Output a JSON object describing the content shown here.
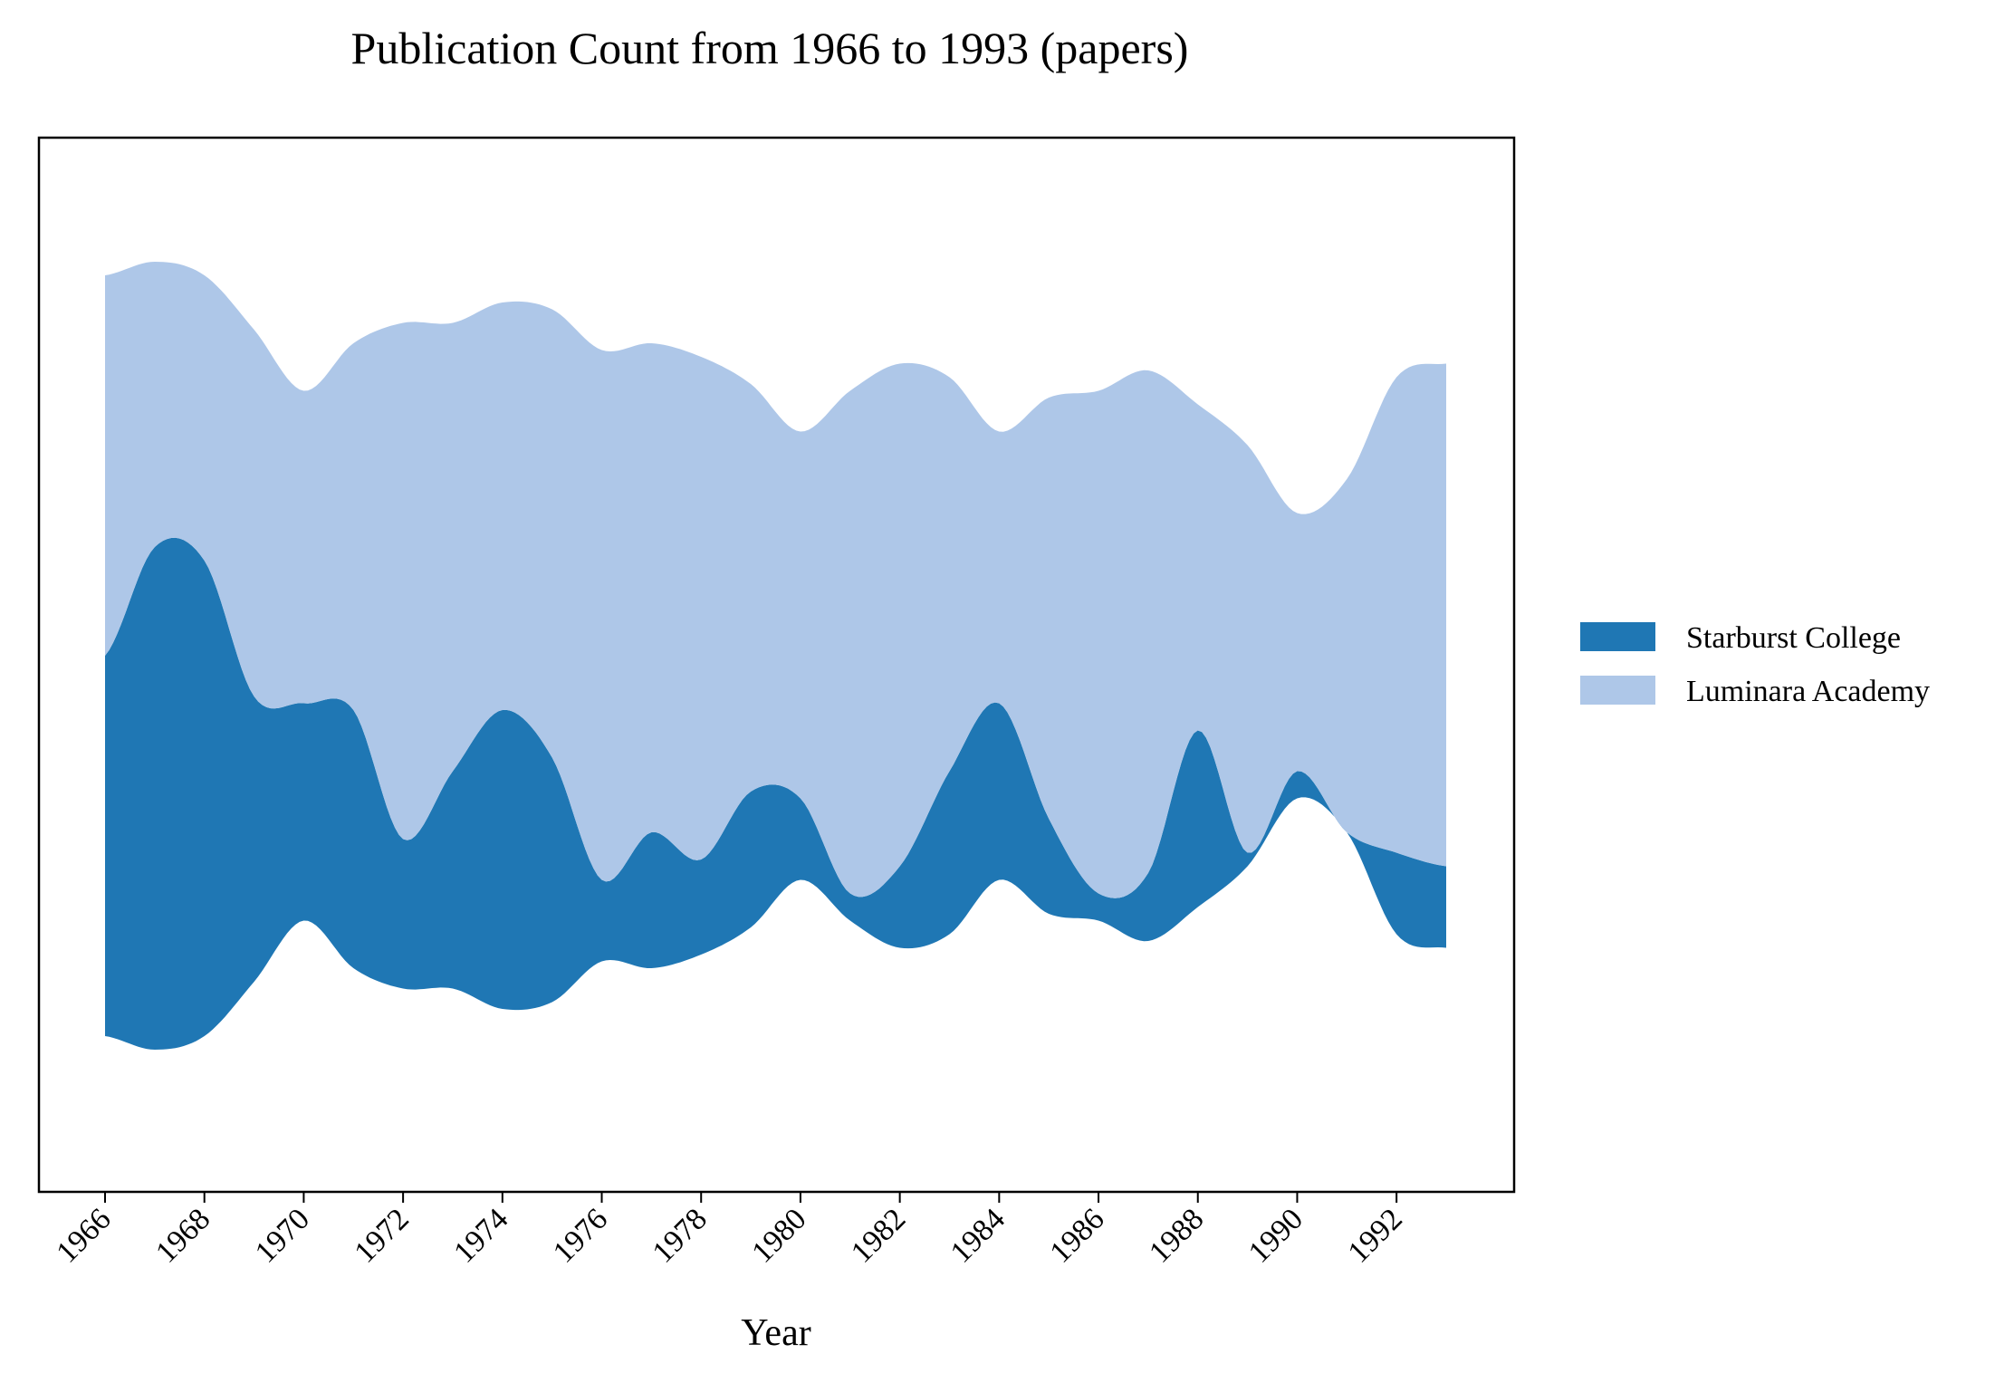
{
  "chart_data": {
    "type": "area",
    "subtype": "streamgraph",
    "title": "Publication Count from 1966 to 1993 (papers)",
    "xlabel": "Year",
    "ylabel": "",
    "x": [
      1966,
      1967,
      1968,
      1969,
      1970,
      1971,
      1972,
      1973,
      1974,
      1975,
      1976,
      1977,
      1978,
      1979,
      1980,
      1981,
      1982,
      1983,
      1984,
      1985,
      1986,
      1987,
      1988,
      1989,
      1990,
      1991,
      1992,
      1993
    ],
    "xticks": [
      "1966",
      "1968",
      "1970",
      "1972",
      "1974",
      "1976",
      "1978",
      "1980",
      "1982",
      "1984",
      "1986",
      "1988",
      "1990",
      "1992"
    ],
    "y_ticks_visible": false,
    "legend_position": "right",
    "series": [
      {
        "name": "Starburst College",
        "color": "#1f77b4",
        "values": [
          28,
          37,
          35,
          21,
          16,
          19,
          11,
          16,
          22,
          18,
          6,
          10,
          7,
          10,
          6,
          2,
          6,
          12,
          13,
          7,
          2,
          5,
          13,
          1,
          2,
          0,
          6,
          6
        ]
      },
      {
        "name": "Luminara Academy",
        "color": "#aec7e8",
        "values": [
          28,
          21,
          21,
          27,
          23,
          27,
          38,
          33,
          30,
          33,
          39,
          36,
          37,
          30,
          27,
          37,
          37,
          29,
          20,
          31,
          37,
          37,
          24,
          30,
          19,
          26,
          35,
          37
        ]
      }
    ]
  }
}
